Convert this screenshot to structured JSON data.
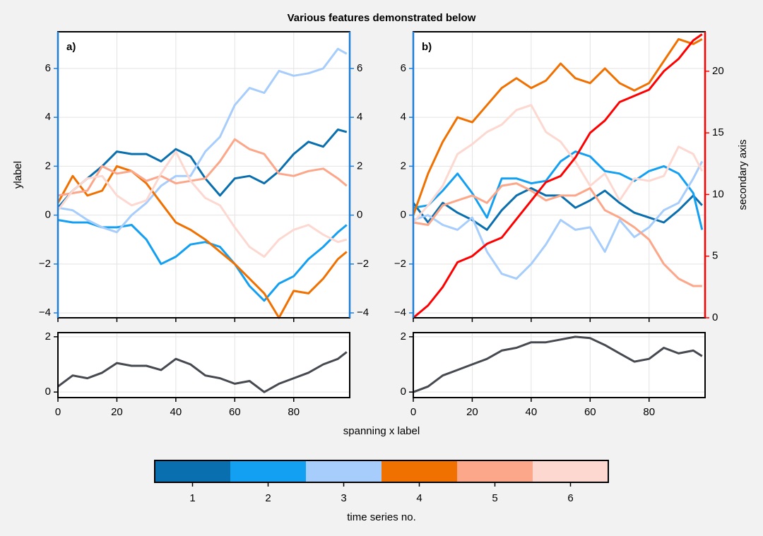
{
  "chart_data": [
    {
      "type": "line",
      "title": "Various features demonstrated below",
      "label": "a)",
      "ylabel": "ylabel",
      "axis_color": "#1f7fd6",
      "mirror_yaxis": true,
      "grid": true,
      "xticklabels": false,
      "x": [
        0,
        5,
        10,
        15,
        20,
        25,
        30,
        35,
        40,
        45,
        50,
        55,
        60,
        65,
        70,
        75,
        80,
        85,
        90,
        95,
        98
      ],
      "xlim": [
        0,
        99
      ],
      "xticks": [
        0,
        20,
        40,
        60,
        80
      ],
      "ylim": [
        -4.2,
        7.5
      ],
      "yticks": [
        {
          "value": -4,
          "label": "−4"
        },
        {
          "value": -2,
          "label": "−2"
        },
        0,
        2,
        4,
        6
      ],
      "series": [
        {
          "color": "#0a6fae",
          "values": [
            0.3,
            1,
            1.5,
            2.0,
            2.6,
            2.5,
            2.5,
            2.2,
            2.7,
            2.4,
            1.5,
            0.8,
            1.5,
            1.6,
            1.3,
            1.8,
            2.5,
            3.0,
            2.8,
            3.5,
            3.4
          ]
        },
        {
          "color": "#14a0f2",
          "values": [
            -0.2,
            -0.3,
            -0.3,
            -0.5,
            -0.5,
            -0.4,
            -1.0,
            -2.0,
            -1.7,
            -1.2,
            -1.1,
            -1.3,
            -2.0,
            -2.9,
            -3.5,
            -2.8,
            -2.5,
            -1.8,
            -1.3,
            -0.7,
            -0.4
          ]
        },
        {
          "color": "#a6cdfb",
          "values": [
            0.3,
            0.2,
            -0.2,
            -0.5,
            -0.7,
            0,
            0.5,
            1.2,
            1.6,
            1.6,
            2.6,
            3.2,
            4.5,
            5.2,
            5.0,
            5.9,
            5.7,
            5.8,
            6.0,
            6.8,
            6.6
          ]
        },
        {
          "color": "#f07000",
          "values": [
            0.5,
            1.6,
            0.8,
            1.0,
            2.0,
            1.8,
            1.3,
            0.5,
            -0.3,
            -0.6,
            -1.0,
            -1.5,
            -2.0,
            -2.6,
            -3.2,
            -4.2,
            -3.1,
            -3.2,
            -2.6,
            -1.8,
            -1.5
          ]
        },
        {
          "color": "#fca68a",
          "values": [
            0.8,
            0.9,
            1.0,
            2.0,
            1.7,
            1.8,
            1.4,
            1.6,
            1.3,
            1.4,
            1.5,
            2.2,
            3.1,
            2.7,
            2.5,
            1.7,
            1.6,
            1.8,
            1.9,
            1.5,
            1.2
          ]
        },
        {
          "color": "#fdd8d0",
          "values": [
            0.2,
            1.0,
            1.5,
            1.6,
            0.8,
            0.4,
            0.6,
            1.7,
            2.6,
            1.4,
            0.7,
            0.4,
            -0.5,
            -1.3,
            -1.7,
            -1.0,
            -0.6,
            -0.4,
            -0.8,
            -1.1,
            -1.0
          ]
        }
      ]
    },
    {
      "type": "line",
      "label": "b)",
      "axis_color": "#1f7fd6",
      "y2color": "#ff0000",
      "y2label": "secondary axis",
      "grid": true,
      "xticklabels": false,
      "x": [
        0,
        5,
        10,
        15,
        20,
        25,
        30,
        35,
        40,
        45,
        50,
        55,
        60,
        65,
        70,
        75,
        80,
        85,
        90,
        95,
        98
      ],
      "xlim": [
        0,
        99
      ],
      "xticks": [
        0,
        20,
        40,
        60,
        80
      ],
      "ylim": [
        -4.2,
        7.5
      ],
      "yticks": [
        {
          "value": -4,
          "label": "−4"
        },
        {
          "value": -2,
          "label": "−2"
        },
        0,
        2,
        4,
        6
      ],
      "y2lim": [
        0,
        23.2
      ],
      "y2ticks": [
        0,
        5,
        10,
        15,
        20
      ],
      "series": [
        {
          "color": "#0a6fae",
          "values": [
            0.5,
            -0.3,
            0.5,
            0.1,
            -0.2,
            -0.6,
            0.2,
            0.8,
            1.1,
            0.8,
            0.8,
            0.3,
            0.6,
            1.0,
            0.5,
            0.1,
            -0.1,
            -0.3,
            0.2,
            0.8,
            0.4
          ]
        },
        {
          "color": "#14a0f2",
          "values": [
            0.3,
            0.4,
            1.0,
            1.7,
            0.9,
            -0.1,
            1.5,
            1.5,
            1.3,
            1.4,
            2.2,
            2.6,
            2.4,
            1.8,
            1.7,
            1.4,
            1.8,
            2.0,
            1.7,
            0.9,
            -0.6
          ]
        },
        {
          "color": "#a6cdfb",
          "values": [
            -0.2,
            0,
            -0.4,
            -0.6,
            -0.1,
            -1.5,
            -2.4,
            -2.6,
            -2.0,
            -1.2,
            -0.2,
            -0.6,
            -0.5,
            -1.5,
            -0.2,
            -0.9,
            -0.5,
            0.2,
            0.5,
            1.5,
            2.2
          ]
        },
        {
          "color": "#f07000",
          "values": [
            0.0,
            1.7,
            3.0,
            4.0,
            3.8,
            4.5,
            5.2,
            5.6,
            5.2,
            5.5,
            6.2,
            5.6,
            5.4,
            6.0,
            5.4,
            5.1,
            5.4,
            6.3,
            7.2,
            7.0,
            7.2
          ]
        },
        {
          "color": "#fca68a",
          "values": [
            -0.3,
            -0.4,
            0.4,
            0.6,
            0.8,
            0.5,
            1.2,
            1.3,
            1.0,
            0.6,
            0.8,
            0.8,
            1.1,
            0.2,
            -0.1,
            -0.5,
            -1.0,
            -2.0,
            -2.6,
            -2.9,
            -2.9
          ]
        },
        {
          "color": "#fdd8d0",
          "values": [
            -0.3,
            0.4,
            1.2,
            2.5,
            2.9,
            3.4,
            3.7,
            4.3,
            4.5,
            3.4,
            3.0,
            2.2,
            1.2,
            1.7,
            0.6,
            1.5,
            1.4,
            1.6,
            2.8,
            2.5,
            1.8
          ]
        },
        {
          "color": "#ff0000",
          "axis": "y2",
          "values": [
            0,
            1,
            2.5,
            4.5,
            5,
            6,
            6.5,
            8,
            9.5,
            11,
            11.5,
            13,
            15,
            16,
            17.5,
            18,
            18.5,
            20,
            21,
            22.5,
            23
          ]
        }
      ]
    },
    {
      "type": "line",
      "xlabel": "spanning x label",
      "grid": true,
      "xticklabels": true,
      "x": [
        0,
        5,
        10,
        15,
        20,
        25,
        30,
        35,
        40,
        45,
        50,
        55,
        60,
        65,
        70,
        75,
        80,
        85,
        90,
        95,
        98
      ],
      "xlim": [
        0,
        99
      ],
      "xticks": [
        0,
        20,
        40,
        60,
        80
      ],
      "ylim": [
        -0.2,
        2.15
      ],
      "yticks": [
        0,
        2
      ],
      "series": [
        {
          "color": "#464a50",
          "values": [
            0.2,
            0.6,
            0.5,
            0.7,
            1.05,
            0.95,
            0.95,
            0.8,
            1.2,
            1.0,
            0.6,
            0.5,
            0.3,
            0.4,
            0.0,
            0.3,
            0.5,
            0.7,
            1.0,
            1.2,
            1.45
          ]
        }
      ]
    },
    {
      "type": "line",
      "grid": true,
      "xticklabels": true,
      "x": [
        0,
        5,
        10,
        15,
        20,
        25,
        30,
        35,
        40,
        45,
        50,
        55,
        60,
        65,
        70,
        75,
        80,
        85,
        90,
        95,
        98
      ],
      "xlim": [
        0,
        99
      ],
      "xticks": [
        0,
        20,
        40,
        60,
        80
      ],
      "ylim": [
        -0.2,
        2.15
      ],
      "yticks": [
        0,
        2
      ],
      "series": [
        {
          "color": "#464a50",
          "values": [
            0.0,
            0.2,
            0.6,
            0.8,
            1.0,
            1.2,
            1.5,
            1.6,
            1.8,
            1.8,
            1.9,
            2.0,
            1.95,
            1.7,
            1.4,
            1.1,
            1.2,
            1.6,
            1.4,
            1.5,
            1.3
          ]
        }
      ]
    },
    {
      "type": "colorbar",
      "label": "time series no.",
      "ticks": [
        1,
        2,
        3,
        4,
        5,
        6
      ],
      "colors": [
        "#0a6fae",
        "#14a0f2",
        "#a6cdfb",
        "#f07000",
        "#fca68a",
        "#fdd8d0"
      ]
    }
  ]
}
